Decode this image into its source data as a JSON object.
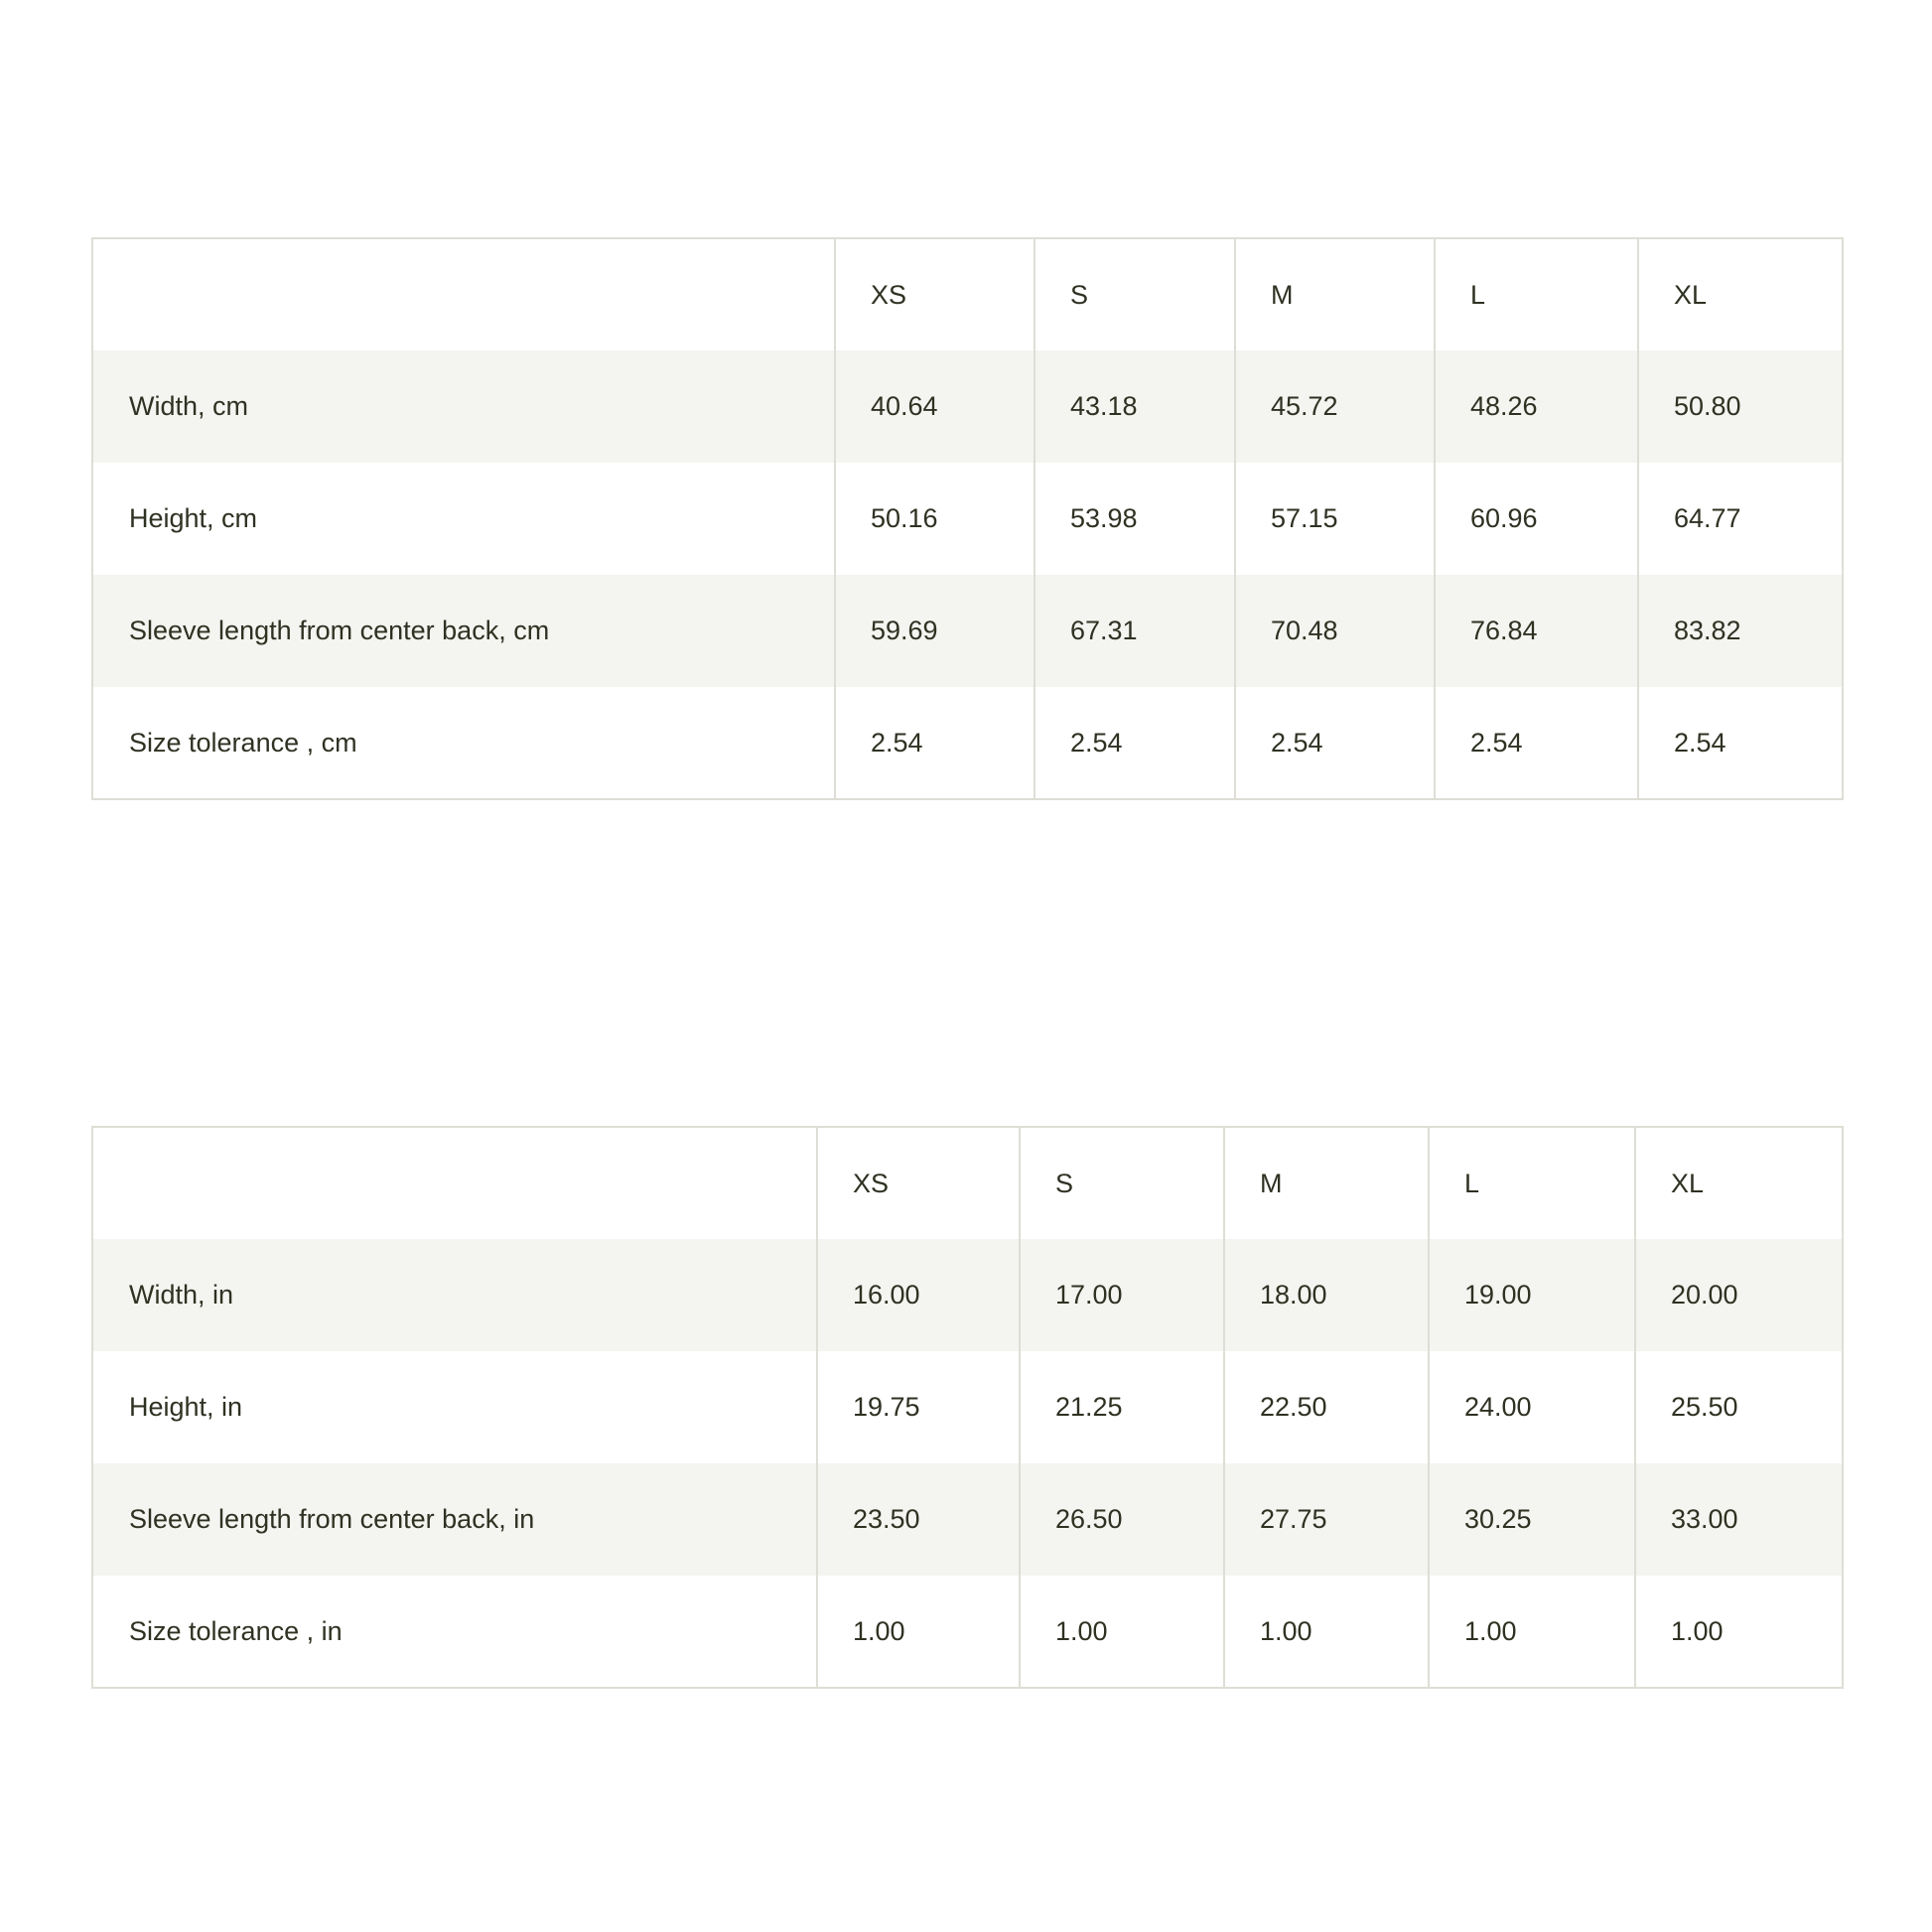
{
  "tables": [
    {
      "sizes": [
        "XS",
        "S",
        "M",
        "L",
        "XL"
      ],
      "rows": [
        {
          "label": "Width, cm",
          "values": [
            "40.64",
            "43.18",
            "45.72",
            "48.26",
            "50.80"
          ]
        },
        {
          "label": "Height, cm",
          "values": [
            "50.16",
            "53.98",
            "57.15",
            "60.96",
            "64.77"
          ]
        },
        {
          "label": "Sleeve length from center back, cm",
          "values": [
            "59.69",
            "67.31",
            "70.48",
            "76.84",
            "83.82"
          ]
        },
        {
          "label": "Size tolerance , cm",
          "values": [
            "2.54",
            "2.54",
            "2.54",
            "2.54",
            "2.54"
          ]
        }
      ]
    },
    {
      "sizes": [
        "XS",
        "S",
        "M",
        "L",
        "XL"
      ],
      "rows": [
        {
          "label": "Width, in",
          "values": [
            "16.00",
            "17.00",
            "18.00",
            "19.00",
            "20.00"
          ]
        },
        {
          "label": "Height, in",
          "values": [
            "19.75",
            "21.25",
            "22.50",
            "24.00",
            "25.50"
          ]
        },
        {
          "label": "Sleeve length from center back, in",
          "values": [
            "23.50",
            "26.50",
            "27.75",
            "30.25",
            "33.00"
          ]
        },
        {
          "label": "Size tolerance , in",
          "values": [
            "1.00",
            "1.00",
            "1.00",
            "1.00",
            "1.00"
          ]
        }
      ]
    }
  ],
  "colors": {
    "text": "#2e3222",
    "stripe": "#f4f4f0",
    "border": "#deded6"
  }
}
